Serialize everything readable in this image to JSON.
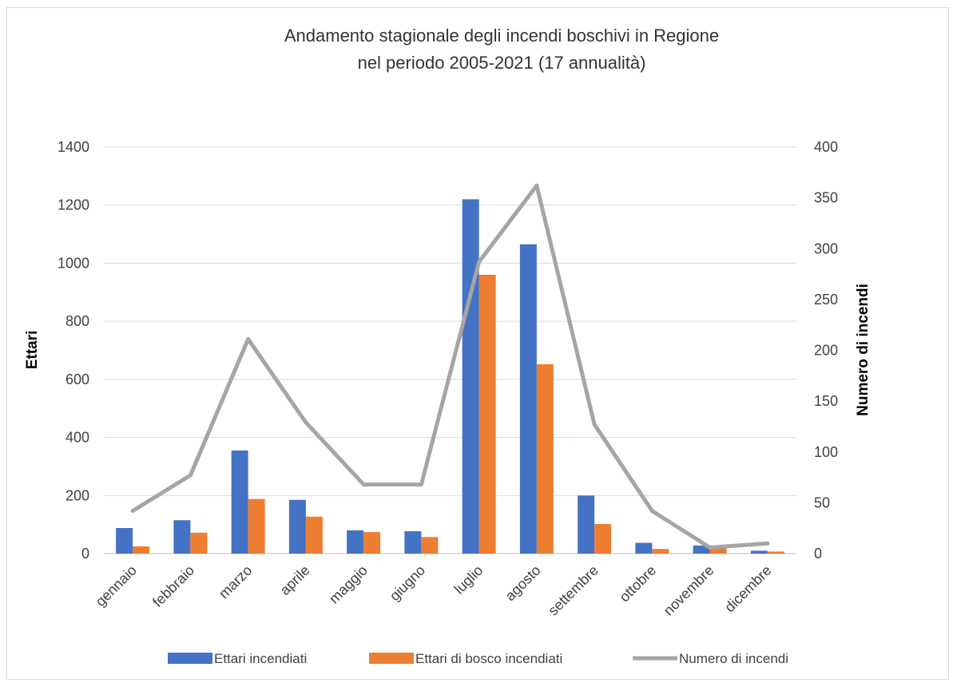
{
  "chart_data": {
    "type": "bar",
    "title": "Andamento stagionale degli incendi boschivi in Regione",
    "subtitle": "nel periodo 2005-2021 (17 annualità)",
    "xlabel": "",
    "ylabel": "Ettari",
    "y2label": "Numero di incendi",
    "ylim": [
      0,
      1400
    ],
    "y2lim": [
      0,
      400
    ],
    "yticks": [
      0,
      200,
      400,
      600,
      800,
      1000,
      1200,
      1400
    ],
    "y2ticks": [
      0,
      50,
      100,
      150,
      200,
      250,
      300,
      350,
      400
    ],
    "grid": true,
    "legend_position": "bottom",
    "categories": [
      "gennaio",
      "febbraio",
      "marzo",
      "aprile",
      "maggio",
      "giugno",
      "luglio",
      "agosto",
      "settembre",
      "ottobre",
      "novembre",
      "dicembre"
    ],
    "series": [
      {
        "name": "Ettari incendiati",
        "type": "bar",
        "axis": "left",
        "color": "#4472C4",
        "values": [
          88,
          115,
          355,
          185,
          80,
          77,
          1220,
          1065,
          200,
          37,
          28,
          10
        ]
      },
      {
        "name": "Ettari di bosco incendiati",
        "type": "bar",
        "axis": "left",
        "color": "#ED7D31",
        "values": [
          25,
          72,
          188,
          127,
          74,
          57,
          960,
          652,
          102,
          16,
          18,
          7
        ]
      },
      {
        "name": "Numero di incendi",
        "type": "line",
        "axis": "right",
        "color": "#A5A5A5",
        "values": [
          42,
          77,
          211,
          129,
          68,
          68,
          287,
          362,
          127,
          42,
          6,
          10
        ]
      }
    ]
  }
}
